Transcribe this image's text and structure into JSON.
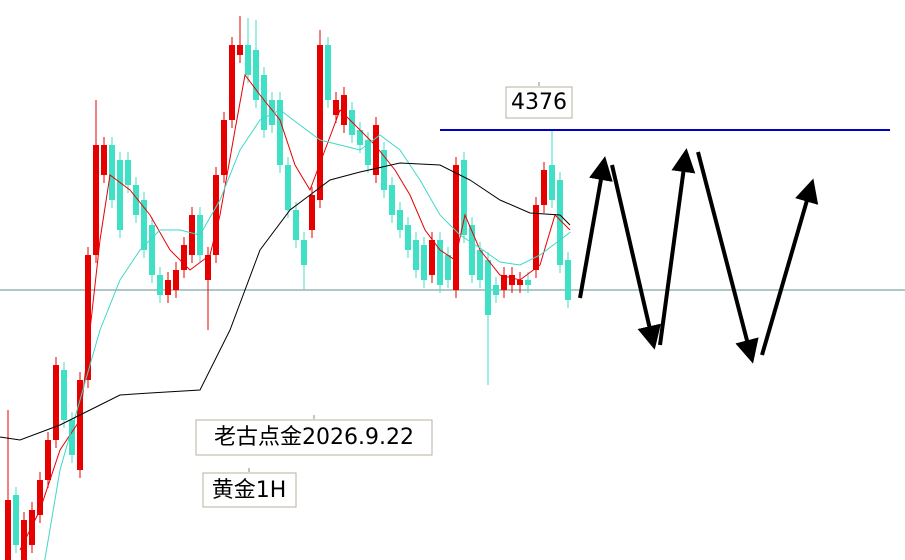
{
  "chart_data": {
    "type": "candlestick",
    "up_color": "#e60000",
    "down_color": "#3fe0c5",
    "ylim": [
      3946,
      4506
    ],
    "open": [
      3946,
      4011,
      3946,
      3961,
      3991,
      4026,
      4066,
      4136,
      4086,
      4036,
      4126,
      4251,
      4331,
      4361,
      4346,
      4346,
      4321,
      4306,
      4281,
      4231,
      4211,
      4216,
      4236,
      4251,
      4291,
      4226,
      4251,
      4331,
      4386,
      4451,
      4461,
      4456,
      4431,
      4406,
      4406,
      4341,
      4296,
      4266,
      4276,
      4306,
      4461,
      4391,
      4381,
      4396,
      4376,
      4366,
      4331,
      4356,
      4321,
      4296,
      4281,
      4266,
      4261,
      4231,
      4266,
      4251,
      4216,
      4346,
      4281,
      4256,
      4246,
      4221,
      4216,
      4221,
      4221,
      4226,
      4236,
      4301,
      4341,
      4326,
      4246
    ],
    "high": [
      4096,
      4019,
      3994,
      4004,
      4034,
      4074,
      4149,
      4144,
      4094,
      4134,
      4259,
      4406,
      4369,
      4369,
      4354,
      4354,
      4329,
      4314,
      4289,
      4239,
      4234,
      4244,
      4269,
      4299,
      4299,
      4259,
      4339,
      4394,
      4469,
      4490,
      4488,
      4486,
      4439,
      4414,
      4414,
      4349,
      4304,
      4274,
      4319,
      4476,
      4469,
      4414,
      4419,
      4404,
      4384,
      4374,
      4389,
      4364,
      4329,
      4304,
      4289,
      4274,
      4269,
      4274,
      4274,
      4259,
      4349,
      4354,
      4289,
      4264,
      4254,
      4229,
      4239,
      4239,
      4234,
      4234,
      4309,
      4344,
      4376,
      4334,
      4254
    ],
    "low": [
      3946,
      3953,
      3946,
      3953,
      3983,
      4018,
      4058,
      4078,
      4043,
      4028,
      4118,
      4243,
      4323,
      4298,
      4268,
      4313,
      4283,
      4248,
      4223,
      4203,
      4203,
      4208,
      4228,
      4243,
      4243,
      4176,
      4243,
      4323,
      4378,
      4443,
      4423,
      4398,
      4368,
      4373,
      4333,
      4288,
      4258,
      4216,
      4268,
      4298,
      4398,
      4383,
      4373,
      4363,
      4353,
      4333,
      4323,
      4308,
      4283,
      4268,
      4248,
      4228,
      4218,
      4223,
      4213,
      4218,
      4208,
      4263,
      4223,
      4218,
      4121,
      4203,
      4208,
      4213,
      4213,
      4213,
      4228,
      4293,
      4298,
      4233,
      4198
    ],
    "close": [
      4006,
      3961,
      3986,
      3996,
      4026,
      4066,
      4141,
      4086,
      4051,
      4126,
      4251,
      4361,
      4361,
      4306,
      4276,
      4321,
      4291,
      4256,
      4231,
      4211,
      4226,
      4236,
      4261,
      4291,
      4251,
      4251,
      4331,
      4386,
      4461,
      4461,
      4431,
      4406,
      4376,
      4381,
      4341,
      4296,
      4266,
      4241,
      4311,
      4461,
      4406,
      4406,
      4411,
      4371,
      4361,
      4341,
      4381,
      4316,
      4291,
      4276,
      4256,
      4236,
      4226,
      4266,
      4221,
      4226,
      4341,
      4271,
      4231,
      4226,
      4191,
      4211,
      4231,
      4231,
      4226,
      4221,
      4301,
      4336,
      4306,
      4241,
      4206
    ],
    "moving_averages": [
      {
        "color": "#e60000",
        "x": [
          2.5,
          5,
          7.5,
          10,
          11.25,
          12.5,
          13.75,
          16.25,
          18.75,
          21.25,
          23.75,
          26.25,
          27.5,
          29.375,
          30.625,
          32.5,
          35,
          36.875,
          38.75,
          40.625,
          42.5,
          44.375,
          46.875,
          49.375,
          51.25,
          53.125,
          55,
          56.875,
          58.125,
          60,
          62.5,
          65,
          67.5,
          69.375,
          71.25
        ],
        "values": [
          3956,
          3996,
          4056,
          4086,
          4176,
          4266,
          4331,
          4316,
          4291,
          4256,
          4236,
          4251,
          4291,
          4376,
          4431,
          4411,
          4386,
          4341,
          4316,
          4356,
          4396,
          4381,
          4361,
          4336,
          4311,
          4276,
          4256,
          4246,
          4291,
          4256,
          4231,
          4226,
          4241,
          4291,
          4276
        ]
      },
      {
        "color": "#3fd8c8",
        "x": [
          5.6,
          7.5,
          10,
          12.5,
          15,
          17.5,
          20,
          22.5,
          25,
          27.5,
          30,
          32.5,
          35,
          37.5,
          40,
          42.5,
          45,
          47.5,
          50,
          52.5,
          55,
          57.5,
          60,
          62.5,
          65,
          67.5,
          70,
          71.3
        ],
        "values": [
          3946,
          4036,
          4106,
          4176,
          4226,
          4256,
          4276,
          4276,
          4271,
          4306,
          4356,
          4386,
          4396,
          4381,
          4366,
          4361,
          4356,
          4371,
          4356,
          4326,
          4291,
          4271,
          4258,
          4244,
          4241,
          4251,
          4266,
          4274
        ]
      },
      {
        "color": "#000000",
        "x": [
          0,
          2.5,
          7.5,
          11.25,
          15,
          18.75,
          25,
          28.75,
          32.5,
          36.25,
          38.75,
          41.25,
          45,
          50,
          55,
          58.75,
          62.5,
          66.25,
          70,
          71.25
        ],
        "values": [
          4069,
          4066,
          4081,
          4096,
          4111,
          4113,
          4116,
          4176,
          4256,
          4296,
          4311,
          4326,
          4334,
          4343,
          4341,
          4326,
          4306,
          4293,
          4291,
          4281
        ]
      }
    ],
    "levels": [
      {
        "value": 4376,
        "color": "#0000c8"
      }
    ],
    "reference_line": {
      "value": 4216,
      "color": "#5f8f8f"
    },
    "annotations": [
      "老古点金2026.9.22",
      "黄金1H"
    ]
  }
}
